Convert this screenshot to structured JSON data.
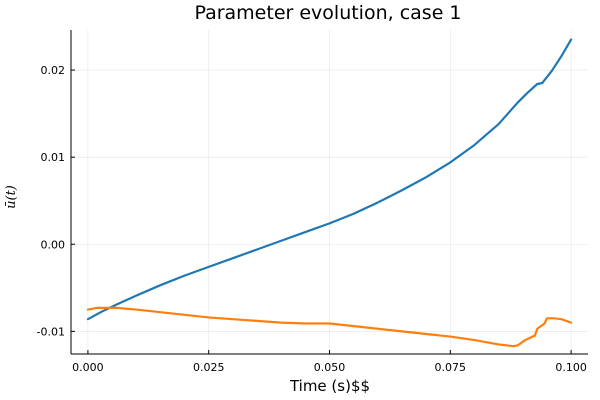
{
  "chart_data": {
    "type": "line",
    "title": "Parameter evolution, case 1",
    "xlabel": "Time (s)$$",
    "ylabel": "ū(t)",
    "xlim": [
      -0.0035,
      0.1035
    ],
    "ylim": [
      -0.0126,
      0.0246
    ],
    "xticks": [
      0.0,
      0.025,
      0.05,
      0.075,
      0.1
    ],
    "xtick_labels": [
      "0.000",
      "0.025",
      "0.050",
      "0.075",
      "0.100"
    ],
    "yticks": [
      -0.01,
      0.0,
      0.01,
      0.02
    ],
    "ytick_labels": [
      "-0.01",
      "0.00",
      "0.01",
      "0.02"
    ],
    "grid": true,
    "legend": "none",
    "series": [
      {
        "color": "#1f77b4",
        "points": [
          [
            0.0,
            -0.0086
          ],
          [
            0.003,
            -0.0077
          ],
          [
            0.006,
            -0.0069
          ],
          [
            0.01,
            -0.0059
          ],
          [
            0.015,
            -0.0047
          ],
          [
            0.02,
            -0.0036
          ],
          [
            0.025,
            -0.0026
          ],
          [
            0.03,
            -0.0016
          ],
          [
            0.035,
            -0.0006
          ],
          [
            0.04,
            0.0004
          ],
          [
            0.045,
            0.0014
          ],
          [
            0.05,
            0.0024
          ],
          [
            0.055,
            0.0035
          ],
          [
            0.06,
            0.0048
          ],
          [
            0.065,
            0.0062
          ],
          [
            0.07,
            0.0077
          ],
          [
            0.075,
            0.0094
          ],
          [
            0.08,
            0.0114
          ],
          [
            0.085,
            0.0138
          ],
          [
            0.089,
            0.0163
          ],
          [
            0.091,
            0.0174
          ],
          [
            0.093,
            0.0184
          ],
          [
            0.094,
            0.0185
          ],
          [
            0.096,
            0.0199
          ],
          [
            0.098,
            0.0216
          ],
          [
            0.1,
            0.0235
          ]
        ]
      },
      {
        "color": "#ff7f0e",
        "points": [
          [
            0.0,
            -0.0075
          ],
          [
            0.002,
            -0.0073
          ],
          [
            0.004,
            -0.0073
          ],
          [
            0.006,
            -0.0073
          ],
          [
            0.01,
            -0.0075
          ],
          [
            0.015,
            -0.0078
          ],
          [
            0.02,
            -0.0081
          ],
          [
            0.025,
            -0.0084
          ],
          [
            0.03,
            -0.0086
          ],
          [
            0.035,
            -0.0088
          ],
          [
            0.04,
            -0.009
          ],
          [
            0.045,
            -0.0091
          ],
          [
            0.05,
            -0.0091
          ],
          [
            0.055,
            -0.0094
          ],
          [
            0.06,
            -0.0097
          ],
          [
            0.065,
            -0.01
          ],
          [
            0.07,
            -0.0103
          ],
          [
            0.075,
            -0.0106
          ],
          [
            0.08,
            -0.011
          ],
          [
            0.085,
            -0.0115
          ],
          [
            0.088,
            -0.0117
          ],
          [
            0.089,
            -0.0116
          ],
          [
            0.0905,
            -0.011
          ],
          [
            0.092,
            -0.0106
          ],
          [
            0.0925,
            -0.0105
          ],
          [
            0.093,
            -0.0097
          ],
          [
            0.094,
            -0.0093
          ],
          [
            0.0945,
            -0.0091
          ],
          [
            0.095,
            -0.0085
          ],
          [
            0.0965,
            -0.0085
          ],
          [
            0.098,
            -0.0086
          ],
          [
            0.1,
            -0.009
          ]
        ]
      }
    ]
  }
}
